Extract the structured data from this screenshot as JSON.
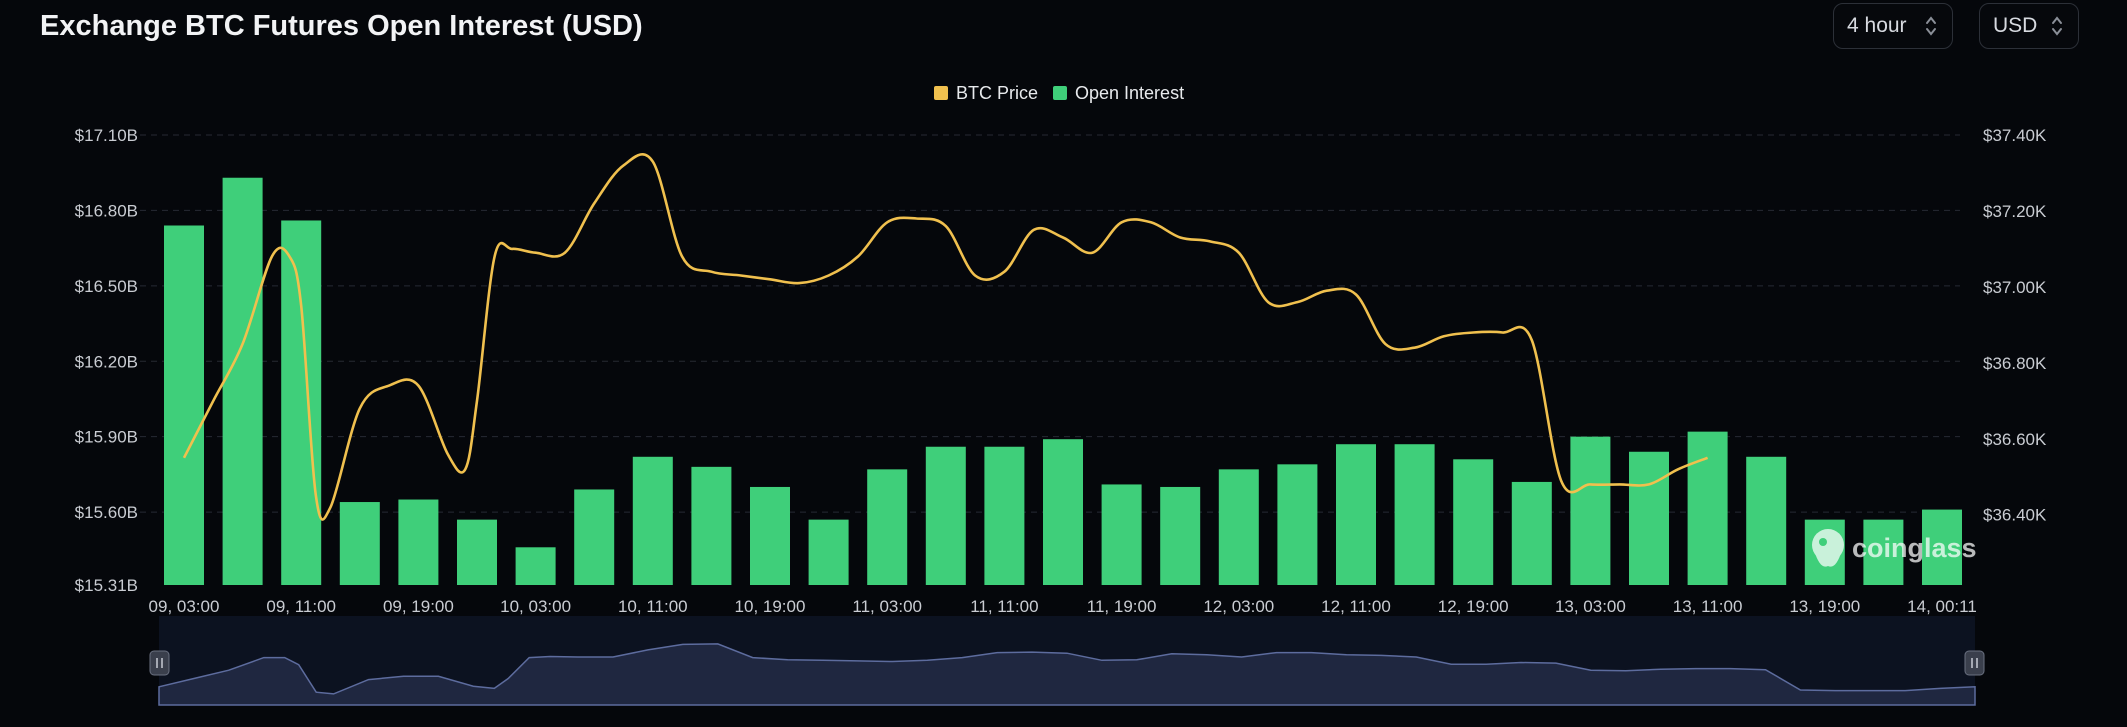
{
  "header": {
    "title": "Exchange BTC Futures Open Interest (USD)",
    "interval": "4 hour",
    "currency": "USD"
  },
  "watermark": "coinglass",
  "colors": {
    "background": "#05070b",
    "bar": "#3fcf7a",
    "line": "#f0c04e",
    "navigator_fill": "#1f2740",
    "navigator_line": "#5d6c9e"
  },
  "chart_data": {
    "type": "bar",
    "title": "Exchange BTC Futures Open Interest (USD)",
    "legend": [
      "BTC Price",
      "Open Interest"
    ],
    "legend_position": "top-center",
    "grid": true,
    "x_tick_labels": [
      "09, 03:00",
      "09, 11:00",
      "09, 19:00",
      "10, 03:00",
      "10, 11:00",
      "10, 19:00",
      "11, 03:00",
      "11, 11:00",
      "11, 19:00",
      "12, 03:00",
      "12, 11:00",
      "12, 19:00",
      "13, 03:00",
      "13, 11:00",
      "13, 19:00",
      "14, 00:11"
    ],
    "y_left": {
      "ticks": [
        "$17.10B",
        "$16.80B",
        "$16.50B",
        "$16.20B",
        "$15.90B",
        "$15.60B",
        "$15.31B"
      ],
      "range": [
        15.31,
        17.1
      ],
      "unit": "B USD"
    },
    "y_right": {
      "ticks": [
        "$37.40K",
        "$37.20K",
        "$37.00K",
        "$36.80K",
        "$36.60K",
        "$36.40K"
      ],
      "range": [
        36.215,
        37.4
      ],
      "unit": "K USD"
    },
    "series": [
      {
        "name": "Open Interest",
        "type": "bar",
        "axis": "left",
        "values": [
          16.74,
          16.93,
          16.76,
          15.64,
          15.65,
          15.57,
          15.46,
          15.69,
          15.82,
          15.78,
          15.7,
          15.57,
          15.77,
          15.86,
          15.86,
          15.89,
          15.71,
          15.7,
          15.77,
          15.79,
          15.87,
          15.87,
          15.81,
          15.72,
          15.9,
          15.84,
          15.92,
          15.82,
          15.57,
          15.57,
          15.61
        ]
      },
      {
        "name": "BTC Price",
        "type": "line",
        "axis": "right",
        "points": [
          [
            0,
            36.55
          ],
          [
            0.5,
            36.7
          ],
          [
            1,
            36.85
          ],
          [
            1.5,
            37.08
          ],
          [
            1.8,
            37.08
          ],
          [
            2,
            36.95
          ],
          [
            2.25,
            36.45
          ],
          [
            2.5,
            36.42
          ],
          [
            3,
            36.68
          ],
          [
            3.5,
            36.74
          ],
          [
            4,
            36.74
          ],
          [
            4.5,
            36.56
          ],
          [
            4.8,
            36.52
          ],
          [
            5,
            36.7
          ],
          [
            5.3,
            37.08
          ],
          [
            5.6,
            37.1
          ],
          [
            6,
            37.09
          ],
          [
            6.5,
            37.09
          ],
          [
            7,
            37.22
          ],
          [
            7.5,
            37.32
          ],
          [
            8,
            37.33
          ],
          [
            8.5,
            37.08
          ],
          [
            9,
            37.04
          ],
          [
            9.5,
            37.03
          ],
          [
            10,
            37.02
          ],
          [
            10.5,
            37.01
          ],
          [
            11,
            37.03
          ],
          [
            11.5,
            37.08
          ],
          [
            12,
            37.17
          ],
          [
            12.5,
            37.18
          ],
          [
            13,
            37.16
          ],
          [
            13.5,
            37.03
          ],
          [
            14,
            37.04
          ],
          [
            14.5,
            37.15
          ],
          [
            15,
            37.13
          ],
          [
            15.5,
            37.09
          ],
          [
            16,
            37.17
          ],
          [
            16.5,
            37.17
          ],
          [
            17,
            37.13
          ],
          [
            17.5,
            37.12
          ],
          [
            18,
            37.09
          ],
          [
            18.5,
            36.96
          ],
          [
            19,
            36.96
          ],
          [
            19.5,
            36.99
          ],
          [
            20,
            36.98
          ],
          [
            20.5,
            36.85
          ],
          [
            21,
            36.84
          ],
          [
            21.5,
            36.87
          ],
          [
            22,
            36.88
          ],
          [
            22.5,
            36.88
          ],
          [
            23,
            36.86
          ],
          [
            23.5,
            36.49
          ],
          [
            24,
            36.48
          ],
          [
            24.5,
            36.48
          ],
          [
            25,
            36.48
          ],
          [
            25.5,
            36.52
          ],
          [
            26,
            36.55
          ]
        ]
      }
    ]
  }
}
